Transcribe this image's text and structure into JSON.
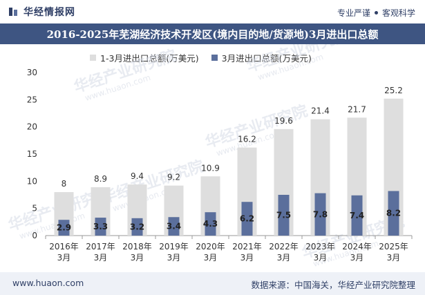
{
  "header": {
    "brand": "华经情报网",
    "tagline_left": "专业严谨",
    "tagline_right": "客观科学"
  },
  "title": "2016-2025年芜湖经济技术开发区(境内目的地/货源地)3月进出口总额",
  "footer": {
    "url": "www.huaon.com",
    "source": "数据来源：中国海关，华经产业研究院整理"
  },
  "watermark": {
    "text": "华经产业研究院",
    "url": "www.huaon.com"
  },
  "colors": {
    "title_bg": "#3e5582",
    "series1": "#dedede",
    "series2": "#5b6f9c",
    "footer_bg": "#eef1f7"
  },
  "chart_data": {
    "type": "bar",
    "categories": [
      "2016年\n3月",
      "2017年\n3月",
      "2018年\n3月",
      "2019年\n3月",
      "2020年\n3月",
      "2021年\n3月",
      "2022年\n3月",
      "2023年\n3月",
      "2024年\n3月",
      "2025年\n3月"
    ],
    "series": [
      {
        "name": "1-3月进出口总额(万美元)",
        "values": [
          8,
          8.9,
          9.4,
          9.2,
          10.9,
          16.2,
          19.6,
          21.4,
          21.7,
          25.2
        ]
      },
      {
        "name": "3月进出口总额(万美元)",
        "values": [
          2.9,
          3.3,
          3.2,
          3.4,
          4.3,
          6.2,
          7.5,
          7.8,
          7.4,
          8.2
        ]
      }
    ],
    "yticks": [
      0,
      5,
      10,
      15,
      20,
      25,
      30
    ],
    "ylim": [
      0,
      30
    ],
    "grid": false,
    "legend_position": "top"
  }
}
